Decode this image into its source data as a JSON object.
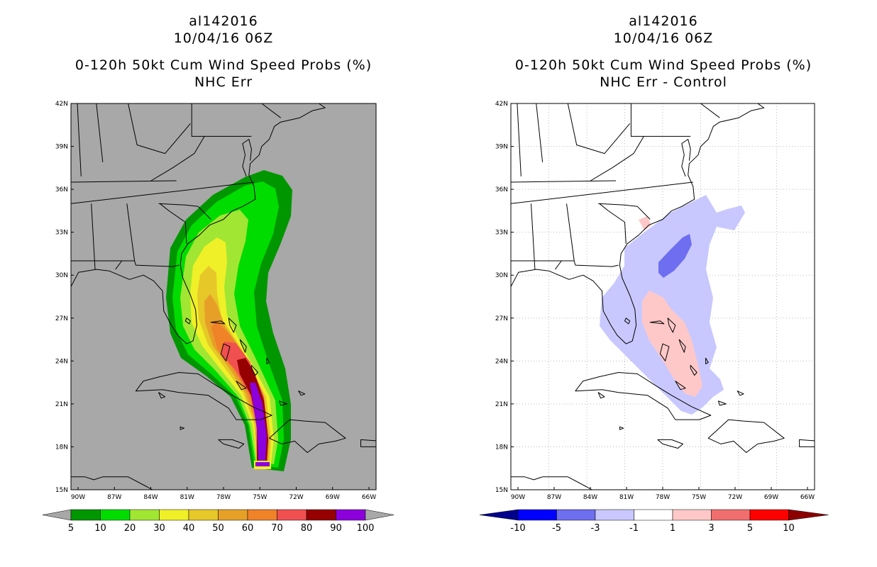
{
  "left": {
    "storm_id": "al142016",
    "datetime": "10/04/16 06Z",
    "product": "0-120h 50kt Cum Wind Speed Probs (%)",
    "subtitle": "NHC Err",
    "background": "#a8a8a8",
    "colorbar": {
      "levels": [
        "5",
        "10",
        "20",
        "30",
        "40",
        "50",
        "60",
        "70",
        "80",
        "90",
        "100"
      ],
      "colors": [
        "#009600",
        "#00dc00",
        "#a0e632",
        "#f0f028",
        "#e6c828",
        "#e6a028",
        "#f08228",
        "#f05050",
        "#960000",
        "#8c00dc"
      ]
    }
  },
  "right": {
    "storm_id": "al142016",
    "datetime": "10/04/16 06Z",
    "product": "0-120h 50kt Cum Wind Speed Probs (%)",
    "subtitle": "NHC Err - Control",
    "background": "#ffffff",
    "colorbar": {
      "levels": [
        "-10",
        "-5",
        "-3",
        "-1",
        "1",
        "3",
        "5",
        "10"
      ],
      "colors": [
        "#0000c8",
        "#0000ff",
        "#6e6ef0",
        "#c8c8ff",
        "#ffffff",
        "#ffc8c8",
        "#f06e6e",
        "#ff0000",
        "#c80000"
      ],
      "end_low": "#00008c",
      "end_high": "#8c0000"
    }
  },
  "lat_labels": [
    "42N",
    "39N",
    "36N",
    "33N",
    "30N",
    "27N",
    "24N",
    "21N",
    "18N",
    "15N"
  ],
  "lon_labels": [
    "90W",
    "87W",
    "84W",
    "81W",
    "78W",
    "75W",
    "72W",
    "69W",
    "66W"
  ]
}
